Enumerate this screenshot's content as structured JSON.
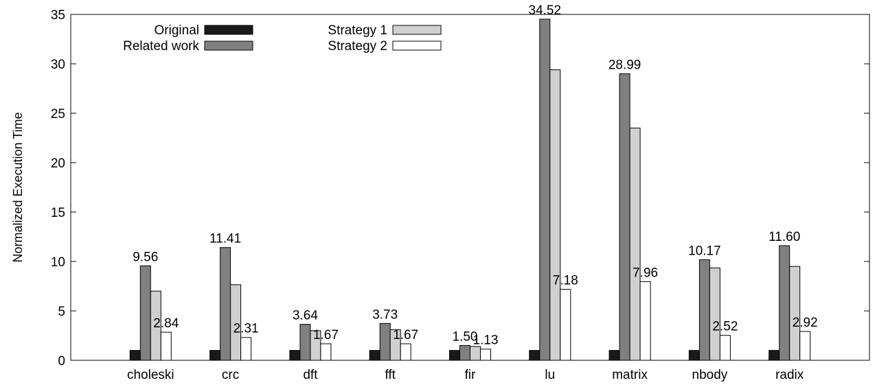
{
  "chart_data": {
    "type": "bar",
    "title": "",
    "xlabel": "",
    "ylabel": "Normalized Execution Time",
    "ylim": [
      0,
      35
    ],
    "yticks": [
      0,
      5,
      10,
      15,
      20,
      25,
      30,
      35
    ],
    "grid": false,
    "legend_position": "top-left",
    "categories": [
      "choleski",
      "crc",
      "dft",
      "fft",
      "fir",
      "lu",
      "matrix",
      "nbody",
      "radix"
    ],
    "series": [
      {
        "name": "Original",
        "color": "#1a1a1a",
        "values": [
          1,
          1,
          1,
          1,
          1,
          1,
          1,
          1,
          1
        ],
        "labels": [
          "",
          "",
          "",
          "",
          "",
          "",
          "",
          "",
          ""
        ]
      },
      {
        "name": "Related work",
        "color": "#808080",
        "values": [
          9.56,
          11.41,
          3.64,
          3.73,
          1.5,
          34.52,
          28.99,
          10.17,
          11.6
        ],
        "labels": [
          "9.56",
          "11.41",
          "3.64",
          "3.73",
          "1.50",
          "34.52",
          "28.99",
          "10.17",
          "11.60"
        ]
      },
      {
        "name": "Strategy 1",
        "color": "#d0d0d0",
        "values": [
          7.0,
          7.65,
          3.0,
          3.1,
          1.4,
          29.4,
          23.5,
          9.35,
          9.5
        ],
        "labels": [
          "",
          "",
          "",
          "",
          "",
          "",
          "",
          "",
          ""
        ]
      },
      {
        "name": "Strategy 2",
        "color": "#ffffff",
        "values": [
          2.84,
          2.31,
          1.67,
          1.67,
          1.13,
          7.18,
          7.96,
          2.52,
          2.92
        ],
        "labels": [
          "2.84",
          "2.31",
          "1.67",
          "1.67",
          "1.13",
          "7.18",
          "7.96",
          "2.52",
          "2.92"
        ]
      }
    ]
  }
}
